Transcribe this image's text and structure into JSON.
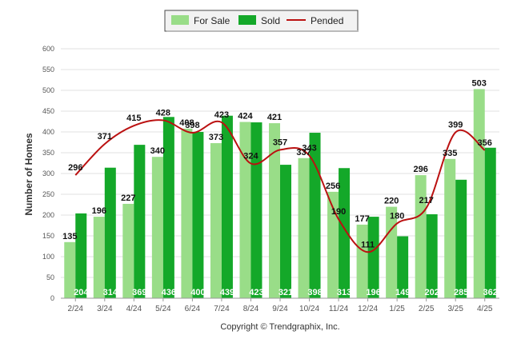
{
  "chart_data": {
    "type": "bar",
    "categories": [
      "2/24",
      "3/24",
      "4/24",
      "5/24",
      "6/24",
      "7/24",
      "8/24",
      "9/24",
      "10/24",
      "11/24",
      "12/24",
      "1/25",
      "2/25",
      "3/25",
      "4/25"
    ],
    "series": [
      {
        "name": "For Sale",
        "type": "bar",
        "color": "#99dd88",
        "values": [
          135,
          196,
          227,
          340,
          408,
          373,
          424,
          421,
          337,
          256,
          177,
          220,
          296,
          335,
          503
        ]
      },
      {
        "name": "Sold",
        "type": "bar",
        "color": "#14a829",
        "values": [
          204,
          314,
          369,
          436,
          400,
          439,
          423,
          321,
          398,
          313,
          196,
          149,
          202,
          285,
          362
        ]
      },
      {
        "name": "Pended",
        "type": "line",
        "color": "#bb1111",
        "values": [
          296,
          371,
          415,
          428,
          398,
          423,
          324,
          357,
          343,
          190,
          111,
          180,
          217,
          399,
          356
        ]
      }
    ],
    "ylabel": "Number of Homes",
    "ylim": [
      0,
      600
    ],
    "yticks": [
      0,
      50,
      100,
      150,
      200,
      250,
      300,
      350,
      400,
      450,
      500,
      550,
      600
    ],
    "grid": true,
    "legend_position": "top-center",
    "copyright": "Copyright © Trendgraphix, Inc."
  }
}
